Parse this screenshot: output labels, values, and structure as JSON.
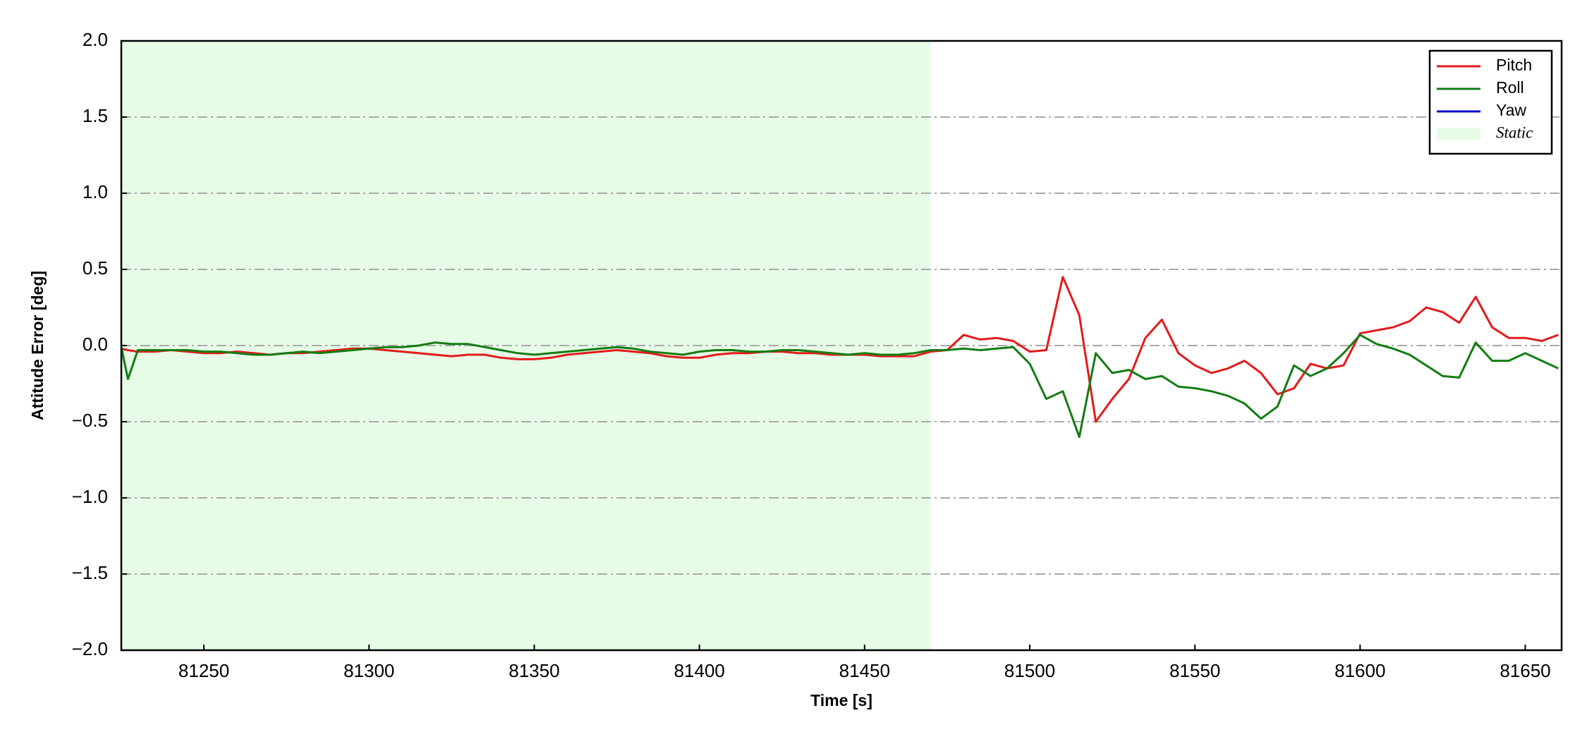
{
  "chart_data": {
    "type": "line",
    "xlabel": "Time [s]",
    "ylabel": "Attitude Error [deg]",
    "x": [
      81225,
      81227,
      81230,
      81235,
      81240,
      81245,
      81250,
      81255,
      81260,
      81265,
      81270,
      81275,
      81280,
      81285,
      81290,
      81295,
      81300,
      81305,
      81310,
      81315,
      81320,
      81325,
      81330,
      81335,
      81340,
      81345,
      81350,
      81355,
      81360,
      81365,
      81370,
      81375,
      81380,
      81385,
      81390,
      81395,
      81400,
      81405,
      81410,
      81415,
      81420,
      81425,
      81430,
      81435,
      81440,
      81445,
      81450,
      81455,
      81460,
      81465,
      81470,
      81475,
      81480,
      81485,
      81490,
      81495,
      81500,
      81505,
      81510,
      81515,
      81520,
      81525,
      81530,
      81535,
      81540,
      81545,
      81550,
      81555,
      81560,
      81565,
      81570,
      81575,
      81580,
      81585,
      81590,
      81595,
      81600,
      81605,
      81610,
      81615,
      81620,
      81625,
      81630,
      81635,
      81640,
      81645,
      81650,
      81655,
      81660
    ],
    "series": [
      {
        "name": "Pitch",
        "color": "#e31a1c",
        "values": [
          -0.02,
          -0.03,
          -0.04,
          -0.04,
          -0.03,
          -0.04,
          -0.05,
          -0.05,
          -0.04,
          -0.05,
          -0.06,
          -0.05,
          -0.05,
          -0.04,
          -0.03,
          -0.02,
          -0.02,
          -0.03,
          -0.04,
          -0.05,
          -0.06,
          -0.07,
          -0.06,
          -0.06,
          -0.08,
          -0.09,
          -0.09,
          -0.08,
          -0.06,
          -0.05,
          -0.04,
          -0.03,
          -0.04,
          -0.05,
          -0.07,
          -0.08,
          -0.08,
          -0.06,
          -0.05,
          -0.05,
          -0.04,
          -0.04,
          -0.05,
          -0.05,
          -0.06,
          -0.06,
          -0.06,
          -0.07,
          -0.07,
          -0.07,
          -0.04,
          -0.03,
          0.07,
          0.04,
          0.05,
          0.03,
          -0.04,
          -0.03,
          0.45,
          0.2,
          -0.5,
          -0.35,
          -0.22,
          0.05,
          0.17,
          -0.05,
          -0.13,
          -0.18,
          -0.15,
          -0.1,
          -0.18,
          -0.32,
          -0.28,
          -0.12,
          -0.15,
          -0.13,
          0.08,
          0.1,
          0.12,
          0.16,
          0.25,
          0.22,
          0.15,
          0.32,
          0.12,
          0.05,
          0.05,
          0.03,
          0.07
        ]
      },
      {
        "name": "Roll",
        "color": "#137c13",
        "values": [
          -0.01,
          -0.22,
          -0.03,
          -0.03,
          -0.03,
          -0.03,
          -0.04,
          -0.04,
          -0.05,
          -0.06,
          -0.06,
          -0.05,
          -0.04,
          -0.05,
          -0.04,
          -0.03,
          -0.02,
          -0.01,
          -0.01,
          0,
          0.02,
          0.01,
          0.01,
          -0.01,
          -0.03,
          -0.05,
          -0.06,
          -0.05,
          -0.04,
          -0.03,
          -0.02,
          -0.01,
          -0.02,
          -0.04,
          -0.05,
          -0.06,
          -0.04,
          -0.03,
          -0.03,
          -0.04,
          -0.04,
          -0.03,
          -0.03,
          -0.04,
          -0.05,
          -0.06,
          -0.05,
          -0.06,
          -0.06,
          -0.05,
          -0.03,
          -0.03,
          -0.02,
          -0.03,
          -0.02,
          -0.01,
          -0.12,
          -0.35,
          -0.3,
          -0.6,
          -0.05,
          -0.18,
          -0.16,
          -0.22,
          -0.2,
          -0.27,
          -0.28,
          -0.3,
          -0.33,
          -0.38,
          -0.48,
          -0.4,
          -0.13,
          -0.2,
          -0.15,
          -0.05,
          0.07,
          0.01,
          -0.02,
          -0.06,
          -0.13,
          -0.2,
          -0.21,
          0.02,
          -0.1,
          -0.1,
          -0.05,
          -0.1,
          -0.15
        ]
      },
      {
        "name": "Yaw",
        "color": "#0a0ad0"
      }
    ],
    "span": {
      "label": "Static",
      "xmin": 81225,
      "xmax": 81470,
      "color": "#e6fce6"
    },
    "xlim": [
      81225,
      81661
    ],
    "ylim": [
      -2,
      2
    ],
    "xticks": [
      81250,
      81300,
      81350,
      81400,
      81450,
      81500,
      81550,
      81600,
      81650
    ],
    "yticks": [
      {
        "value": -2,
        "label": "−2.0"
      },
      {
        "value": -1.5,
        "label": "−1.5"
      },
      {
        "value": -1,
        "label": "−1.0"
      },
      {
        "value": -0.5,
        "label": "−0.5"
      },
      {
        "value": 0,
        "label": "0.0"
      },
      {
        "value": 0.5,
        "label": "0.5"
      },
      {
        "value": 1,
        "label": "1.0"
      },
      {
        "value": 1.5,
        "label": "1.5"
      },
      {
        "value": 2,
        "label": "2.0"
      }
    ],
    "grid": true,
    "legend": "upper right"
  }
}
